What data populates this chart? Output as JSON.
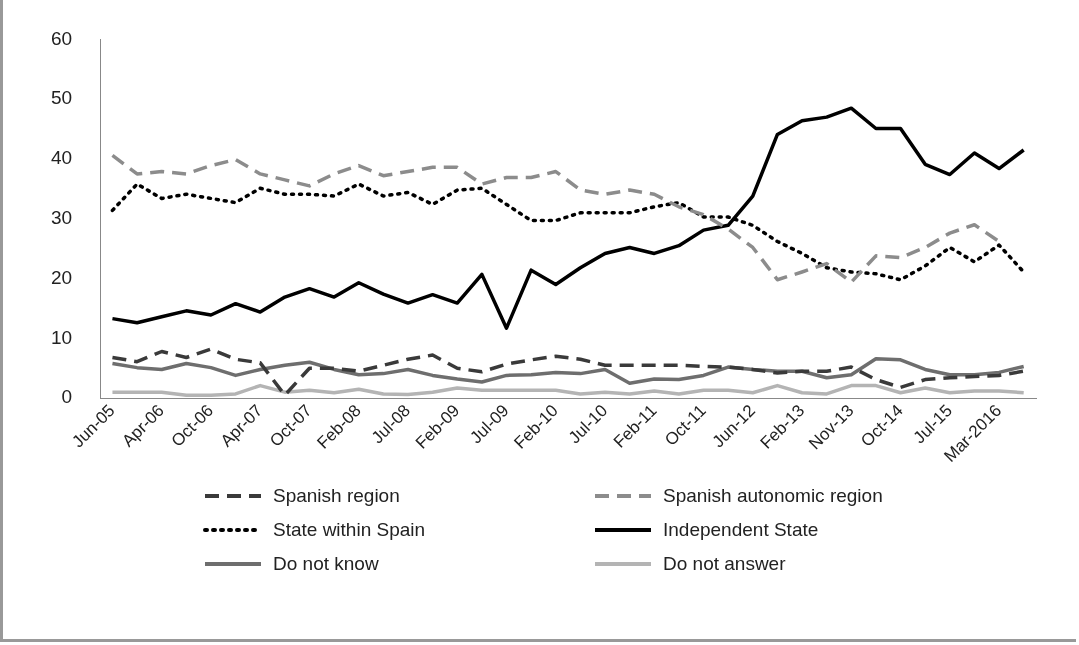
{
  "chart_data": {
    "type": "line",
    "categories": [
      "Jun-05",
      null,
      "Apr-06",
      null,
      "Oct-06",
      null,
      "Apr-07",
      null,
      "Oct-07",
      null,
      "Feb-08",
      null,
      "Jul-08",
      null,
      "Feb-09",
      null,
      "Jul-09",
      null,
      "Feb-10",
      null,
      "Jul-10",
      null,
      "Feb-11",
      null,
      "Oct-11",
      null,
      "Jun-12",
      null,
      "Feb-13",
      null,
      "Nov-13",
      null,
      "Oct-14",
      null,
      "Jul-15",
      null,
      "Mar-2016",
      null
    ],
    "ylim": [
      0,
      60
    ],
    "yticks": [
      0,
      10,
      20,
      30,
      40,
      50,
      60
    ],
    "grid": false,
    "legend": "bottom",
    "marker": "none",
    "series": [
      {
        "name": "Spanish region",
        "color": "#3a3a3a",
        "line_style": "dashed",
        "values": [
          6.8,
          6.1,
          7.8,
          6.8,
          8.2,
          6.5,
          5.9,
          0.5,
          5.0,
          5.0,
          4.5,
          5.5,
          6.5,
          7.2,
          5.0,
          4.4,
          5.7,
          6.4,
          7.0,
          6.5,
          5.5,
          5.5,
          5.5,
          5.5,
          5.3,
          5.2,
          4.8,
          4.2,
          4.5,
          4.5,
          5.2,
          3.1,
          1.8,
          3.1,
          3.4,
          3.6,
          3.8,
          4.5
        ]
      },
      {
        "name": "Spanish autonomic region",
        "color": "#8c8c8c",
        "line_style": "dashed",
        "values": [
          40.6,
          37.5,
          37.9,
          37.5,
          38.9,
          39.9,
          37.5,
          36.5,
          35.5,
          37.5,
          38.9,
          37.2,
          37.9,
          38.6,
          38.6,
          35.8,
          36.9,
          36.9,
          37.9,
          34.8,
          34.1,
          34.8,
          34.1,
          32.0,
          30.7,
          28.3,
          25.2,
          19.8,
          21.1,
          22.5,
          19.4,
          23.8,
          23.5,
          25.2,
          27.6,
          29.0,
          26.2,
          null
        ]
      },
      {
        "name": "State within Spain",
        "color": "#000000",
        "line_style": "dotted",
        "values": [
          31.4,
          35.8,
          33.4,
          34.1,
          33.4,
          32.7,
          35.1,
          34.1,
          34.1,
          33.8,
          35.8,
          33.8,
          34.4,
          32.4,
          34.8,
          35.1,
          32.4,
          29.7,
          29.7,
          31.0,
          31.0,
          31.0,
          32.0,
          32.7,
          30.3,
          30.3,
          28.9,
          26.2,
          24.2,
          21.8,
          21.1,
          20.8,
          19.8,
          22.1,
          25.2,
          22.8,
          25.6,
          21.1
        ]
      },
      {
        "name": "Independent State",
        "color": "#000000",
        "line_style": "solid",
        "values": [
          13.3,
          12.6,
          13.6,
          14.6,
          13.9,
          15.8,
          14.4,
          16.9,
          18.3,
          16.9,
          19.3,
          17.4,
          15.9,
          17.3,
          15.9,
          20.7,
          11.7,
          21.4,
          19.0,
          21.8,
          24.2,
          25.2,
          24.2,
          25.5,
          28.1,
          28.9,
          33.8,
          44.1,
          46.4,
          47.0,
          48.5,
          45.1,
          45.1,
          39.1,
          37.4,
          41.0,
          38.4,
          41.5
        ]
      },
      {
        "name": "Do not know",
        "color": "#6e6e6e",
        "line_style": "solid",
        "values": [
          5.8,
          5.1,
          4.8,
          5.8,
          5.1,
          3.8,
          4.8,
          5.5,
          6.0,
          4.8,
          3.9,
          4.1,
          4.8,
          3.8,
          3.2,
          2.7,
          3.8,
          3.9,
          4.3,
          4.1,
          4.8,
          2.5,
          3.2,
          3.1,
          3.8,
          5.2,
          4.8,
          4.5,
          4.5,
          3.4,
          3.9,
          6.6,
          6.4,
          4.8,
          3.9,
          3.9,
          4.3,
          5.3
        ]
      },
      {
        "name": "Do not answer",
        "color": "#b4b4b4",
        "line_style": "solid",
        "values": [
          1.0,
          1.0,
          1.0,
          0.5,
          0.5,
          0.7,
          2.1,
          1.0,
          1.3,
          0.9,
          1.5,
          0.7,
          0.6,
          1.0,
          1.7,
          1.3,
          1.3,
          1.3,
          1.3,
          0.7,
          1.0,
          0.7,
          1.2,
          0.7,
          1.3,
          1.3,
          0.9,
          2.1,
          0.9,
          0.7,
          2.1,
          2.1,
          0.9,
          1.7,
          0.9,
          1.2,
          1.2,
          0.9
        ]
      }
    ]
  }
}
